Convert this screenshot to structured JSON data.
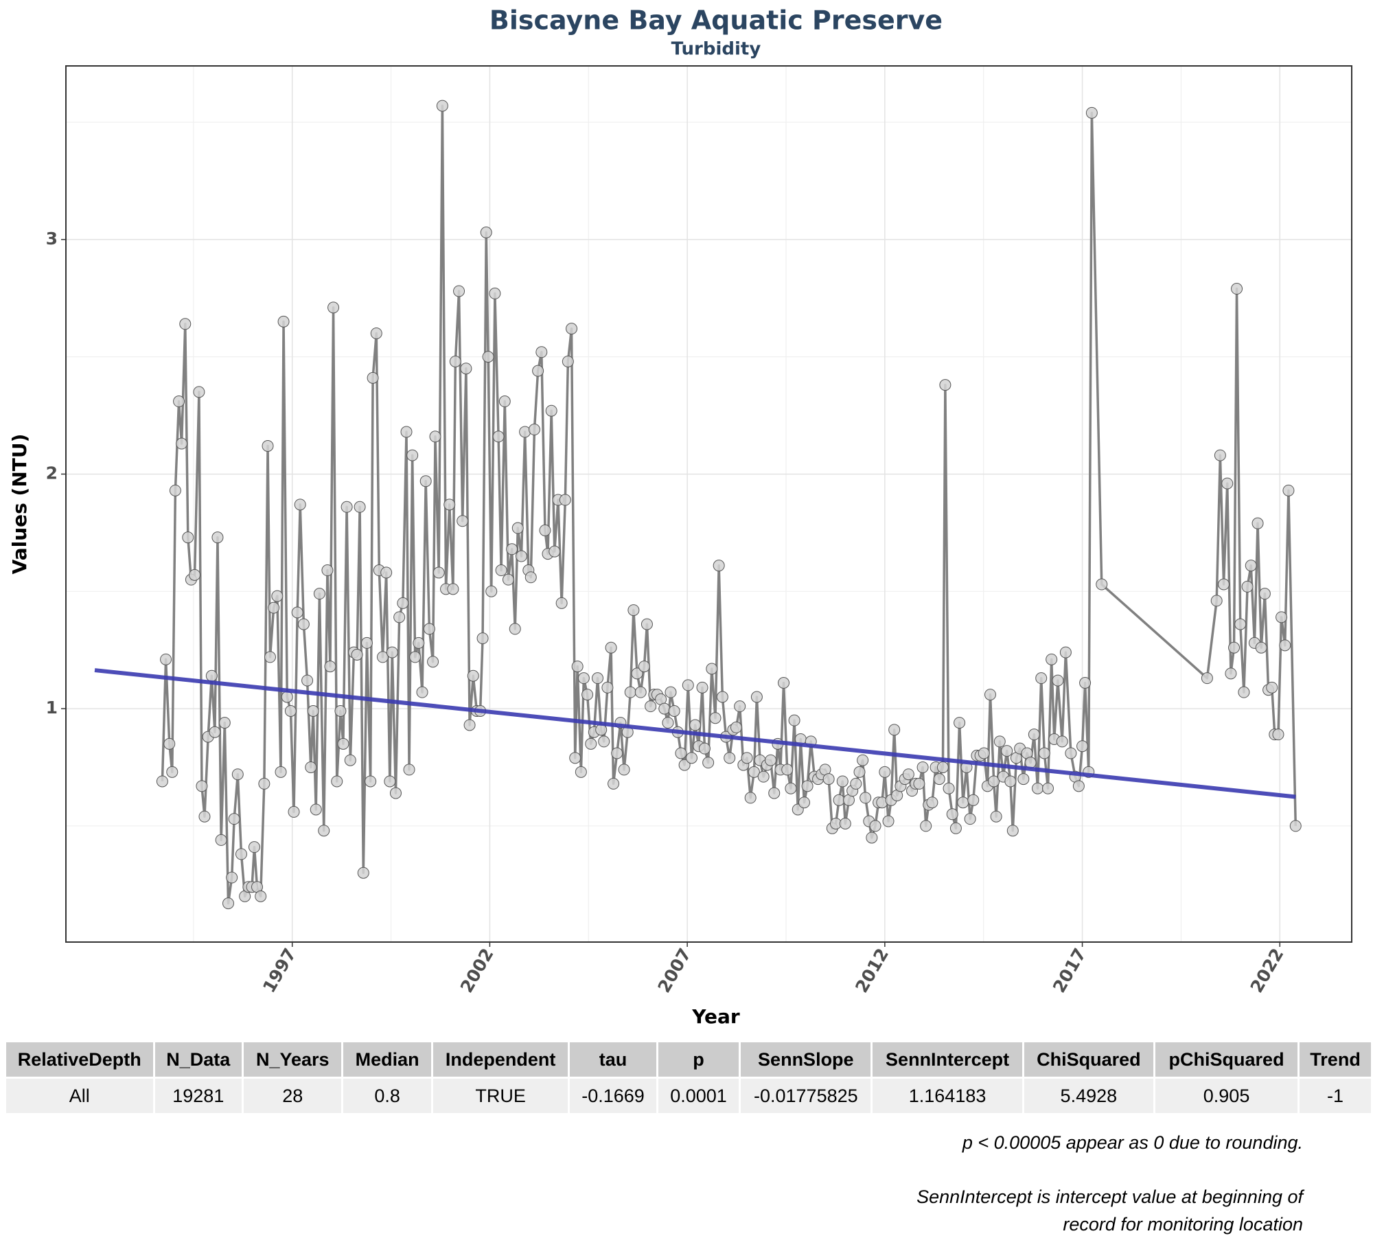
{
  "chart_data": {
    "type": "line",
    "title": "Biscayne Bay Aquatic Preserve",
    "subtitle": "Turbidity",
    "xlabel": "Year",
    "ylabel": "Values (NTU)",
    "xlim": [
      1991.27,
      2023.82
    ],
    "ylim": [
      0.005,
      3.74
    ],
    "xticks": [
      1997,
      2002,
      2007,
      2012,
      2017,
      2022
    ],
    "yticks": [
      1,
      2,
      3
    ],
    "grid": true,
    "x": [
      1993.71,
      1993.8,
      1993.89,
      1993.96,
      1994.04,
      1994.13,
      1994.2,
      1994.29,
      1994.36,
      1994.44,
      1994.53,
      1994.64,
      1994.71,
      1994.78,
      1994.87,
      1994.96,
      1995.04,
      1995.11,
      1995.2,
      1995.29,
      1995.38,
      1995.47,
      1995.53,
      1995.62,
      1995.71,
      1995.8,
      1995.89,
      1995.98,
      1996.04,
      1996.11,
      1996.2,
      1996.29,
      1996.38,
      1996.44,
      1996.53,
      1996.62,
      1996.71,
      1996.78,
      1996.87,
      1996.96,
      1997.04,
      1997.13,
      1997.2,
      1997.29,
      1997.38,
      1997.47,
      1997.53,
      1997.6,
      1997.69,
      1997.8,
      1997.89,
      1997.96,
      1998.04,
      1998.13,
      1998.22,
      1998.29,
      1998.38,
      1998.47,
      1998.56,
      1998.64,
      1998.71,
      1998.8,
      1998.89,
      1998.98,
      1999.04,
      1999.13,
      1999.2,
      1999.29,
      1999.38,
      1999.47,
      1999.53,
      1999.62,
      1999.71,
      1999.8,
      1999.89,
      1999.96,
      2000.04,
      2000.11,
      2000.2,
      2000.29,
      2000.38,
      2000.47,
      2000.56,
      2000.62,
      2000.71,
      2000.8,
      2000.89,
      2000.98,
      2001.07,
      2001.13,
      2001.22,
      2001.31,
      2001.4,
      2001.49,
      2001.58,
      2001.67,
      2001.76,
      2001.82,
      2001.91,
      2001.96,
      2002.04,
      2002.13,
      2002.22,
      2002.29,
      2002.38,
      2002.47,
      2002.56,
      2002.64,
      2002.71,
      2002.8,
      2002.89,
      2002.98,
      2003.04,
      2003.13,
      2003.22,
      2003.31,
      2003.4,
      2003.47,
      2003.56,
      2003.64,
      2003.73,
      2003.82,
      2003.91,
      2003.98,
      2004.07,
      2004.16,
      2004.22,
      2004.31,
      2004.38,
      2004.47,
      2004.56,
      2004.64,
      2004.73,
      2004.82,
      2004.89,
      2004.98,
      2005.07,
      2005.13,
      2005.22,
      2005.31,
      2005.4,
      2005.49,
      2005.56,
      2005.64,
      2005.73,
      2005.82,
      2005.91,
      2005.98,
      2006.07,
      2006.16,
      2006.24,
      2006.33,
      2006.42,
      2006.51,
      2006.58,
      2006.67,
      2006.76,
      2006.84,
      2006.93,
      2007.02,
      2007.11,
      2007.2,
      2007.29,
      2007.38,
      2007.44,
      2007.53,
      2007.62,
      2007.71,
      2007.8,
      2007.89,
      2007.98,
      2008.07,
      2008.16,
      2008.24,
      2008.33,
      2008.42,
      2008.51,
      2008.6,
      2008.69,
      2008.76,
      2008.84,
      2008.93,
      2009.02,
      2009.11,
      2009.2,
      2009.29,
      2009.36,
      2009.44,
      2009.53,
      2009.62,
      2009.71,
      2009.8,
      2009.87,
      2009.96,
      2010.04,
      2010.13,
      2010.22,
      2010.31,
      2010.4,
      2010.49,
      2010.58,
      2010.67,
      2010.76,
      2010.84,
      2010.93,
      2011.0,
      2011.09,
      2011.18,
      2011.27,
      2011.36,
      2011.44,
      2011.51,
      2011.6,
      2011.67,
      2011.76,
      2011.84,
      2011.93,
      2012.0,
      2012.09,
      2012.16,
      2012.24,
      2012.31,
      2012.4,
      2012.51,
      2012.6,
      2012.69,
      2012.78,
      2012.87,
      2012.96,
      2013.04,
      2013.11,
      2013.2,
      2013.29,
      2013.38,
      2013.47,
      2013.53,
      2013.62,
      2013.71,
      2013.8,
      2013.89,
      2013.98,
      2014.07,
      2014.16,
      2014.24,
      2014.33,
      2014.42,
      2014.51,
      2014.6,
      2014.67,
      2014.76,
      2014.82,
      2014.91,
      2015.0,
      2015.09,
      2015.18,
      2015.24,
      2015.33,
      2015.42,
      2015.51,
      2015.6,
      2015.69,
      2015.78,
      2015.87,
      2015.96,
      2016.04,
      2016.13,
      2016.22,
      2016.29,
      2016.38,
      2016.49,
      2016.58,
      2016.71,
      2016.82,
      2016.91,
      2017.0,
      2017.07,
      2017.16,
      2017.24,
      2017.49,
      2020.16,
      2020.4,
      2020.49,
      2020.58,
      2020.67,
      2020.76,
      2020.84,
      2020.91,
      2021.0,
      2021.09,
      2021.18,
      2021.27,
      2021.36,
      2021.44,
      2021.53,
      2021.62,
      2021.71,
      2021.8,
      2021.87,
      2021.96,
      2022.04,
      2022.13,
      2022.22,
      2022.4
    ],
    "series": [
      {
        "color": "#808080",
        "marker_color": "#d3d3d3",
        "values": [
          0.69,
          1.21,
          0.85,
          0.73,
          1.93,
          2.31,
          2.13,
          2.64,
          1.73,
          1.55,
          1.57,
          2.35,
          0.67,
          0.54,
          0.88,
          1.14,
          0.9,
          1.73,
          0.44,
          0.94,
          0.17,
          0.28,
          0.53,
          0.72,
          0.38,
          0.2,
          0.24,
          0.24,
          0.41,
          0.24,
          0.2,
          0.68,
          2.12,
          1.22,
          1.43,
          1.48,
          0.73,
          2.65,
          1.05,
          0.99,
          0.56,
          1.41,
          1.87,
          1.36,
          1.12,
          0.75,
          0.99,
          0.57,
          1.49,
          0.48,
          1.59,
          1.18,
          2.71,
          0.69,
          0.99,
          0.85,
          1.86,
          0.78,
          1.24,
          1.23,
          1.86,
          0.3,
          1.28,
          0.69,
          2.41,
          2.6,
          1.59,
          1.22,
          1.58,
          0.69,
          1.24,
          0.64,
          1.39,
          1.45,
          2.18,
          0.74,
          2.08,
          1.22,
          1.28,
          1.07,
          1.97,
          1.34,
          1.2,
          2.16,
          1.58,
          3.57,
          1.51,
          1.87,
          1.51,
          2.48,
          2.78,
          1.8,
          2.45,
          0.93,
          1.14,
          0.99,
          0.99,
          1.3,
          3.03,
          2.5,
          1.5,
          2.77,
          2.16,
          1.59,
          2.31,
          1.55,
          1.68,
          1.34,
          1.77,
          1.65,
          2.18,
          1.59,
          1.56,
          2.19,
          2.44,
          2.52,
          1.76,
          1.66,
          2.27,
          1.67,
          1.89,
          1.45,
          1.89,
          2.48,
          2.62,
          0.79,
          1.18,
          0.73,
          1.13,
          1.06,
          0.85,
          0.9,
          1.13,
          0.91,
          0.86,
          1.09,
          1.26,
          0.68,
          0.81,
          0.94,
          0.74,
          0.9,
          1.07,
          1.42,
          1.15,
          1.07,
          1.18,
          1.36,
          1.01,
          1.06,
          1.06,
          1.04,
          1.0,
          0.94,
          1.07,
          0.99,
          0.9,
          0.81,
          0.76,
          1.1,
          0.79,
          0.93,
          0.84,
          1.09,
          0.83,
          0.77,
          1.17,
          0.96,
          1.61,
          1.05,
          0.88,
          0.79,
          0.91,
          0.92,
          1.01,
          0.76,
          0.79,
          0.62,
          0.73,
          1.05,
          0.78,
          0.71,
          0.76,
          0.78,
          0.64,
          0.85,
          0.74,
          1.11,
          0.74,
          0.66,
          0.95,
          0.57,
          0.87,
          0.6,
          0.67,
          0.86,
          0.71,
          0.7,
          0.72,
          0.74,
          0.7,
          0.49,
          0.51,
          0.61,
          0.69,
          0.51,
          0.61,
          0.65,
          0.68,
          0.73,
          0.78,
          0.62,
          0.52,
          0.45,
          0.5,
          0.6,
          0.6,
          0.73,
          0.52,
          0.61,
          0.91,
          0.63,
          0.67,
          0.7,
          0.72,
          0.65,
          0.68,
          0.68,
          0.75,
          0.5,
          0.59,
          0.6,
          0.75,
          0.7,
          0.75,
          2.38,
          0.66,
          0.55,
          0.49,
          0.94,
          0.6,
          0.75,
          0.53,
          0.61,
          0.8,
          0.8,
          0.81,
          0.67,
          1.06,
          0.69,
          0.54,
          0.86,
          0.71,
          0.82,
          0.69,
          0.48,
          0.79,
          0.83,
          0.7,
          0.81,
          0.77,
          0.89,
          0.66,
          1.13,
          0.81,
          0.66,
          1.21,
          0.87,
          1.12,
          0.86,
          1.24,
          0.81,
          0.71,
          0.67,
          0.84,
          1.11,
          0.73,
          3.54,
          1.53,
          1.13,
          1.46,
          2.08,
          1.53,
          1.96,
          1.15,
          1.26,
          2.79,
          1.36,
          1.07,
          1.52,
          1.61,
          1.28,
          1.79,
          1.26,
          1.49,
          1.08,
          1.09,
          0.89,
          0.89,
          1.39,
          1.27,
          1.93,
          0.5
        ]
      }
    ],
    "trend": {
      "color": "#3a3ab0",
      "x": [
        1992.0,
        2022.4
      ],
      "values": [
        1.164,
        0.624
      ]
    }
  },
  "table": {
    "columns": [
      "RelativeDepth",
      "N_Data",
      "N_Years",
      "Median",
      "Independent",
      "tau",
      "p",
      "SennSlope",
      "SennIntercept",
      "ChiSquared",
      "pChiSquared",
      "Trend"
    ],
    "rows": [
      [
        "All",
        19281,
        28,
        0.8,
        "TRUE",
        -0.1669,
        0.0001,
        -0.01775825,
        1.164183,
        5.4928,
        0.905,
        -1
      ]
    ]
  },
  "notes": [
    "p < 0.00005 appear as 0 due to rounding.",
    "SennIntercept is intercept value at beginning of record for monitoring location"
  ]
}
